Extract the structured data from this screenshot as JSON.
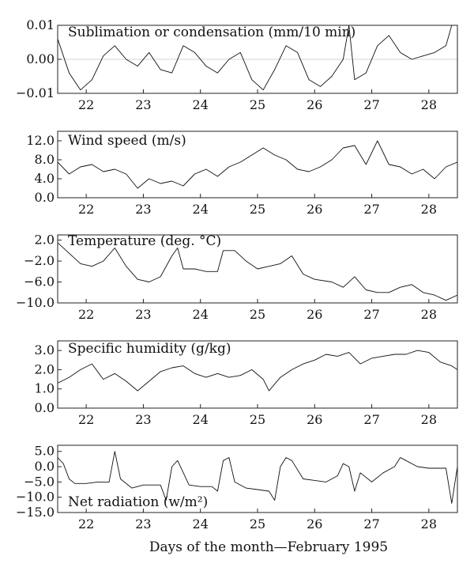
{
  "figure": {
    "xlabel": "Days of the month—February 1995"
  },
  "chart_data": [
    {
      "type": "line",
      "title": "Sublimation or condensation (mm/10 min)",
      "x": [
        21.5,
        21.7,
        21.9,
        22.1,
        22.3,
        22.5,
        22.7,
        22.9,
        23.1,
        23.3,
        23.5,
        23.7,
        23.9,
        24.1,
        24.3,
        24.5,
        24.7,
        24.9,
        25.1,
        25.3,
        25.5,
        25.7,
        25.9,
        26.1,
        26.3,
        26.5,
        26.6,
        26.7,
        26.9,
        27.1,
        27.3,
        27.5,
        27.7,
        27.9,
        28.1,
        28.3,
        28.4,
        28.5
      ],
      "y": [
        0.006,
        -0.004,
        -0.009,
        -0.006,
        0.001,
        0.004,
        0.0,
        -0.002,
        0.002,
        -0.003,
        -0.004,
        0.004,
        0.002,
        -0.002,
        -0.004,
        0.0,
        0.002,
        -0.006,
        -0.009,
        -0.003,
        0.004,
        0.002,
        -0.006,
        -0.008,
        -0.005,
        0.0,
        0.01,
        -0.006,
        -0.004,
        0.004,
        0.007,
        0.002,
        0.0,
        0.001,
        0.002,
        0.004,
        0.01,
        0.01
      ],
      "xlim": [
        21.5,
        28.5
      ],
      "ylim": [
        -0.01,
        0.01
      ],
      "yticks": [
        0.01,
        0.0,
        -0.01
      ],
      "ytick_labels": [
        "0.01",
        "0.00",
        "−0.01"
      ],
      "xticks": [
        22,
        23,
        24,
        25,
        26,
        27,
        28
      ],
      "xtick_labels": [
        "22",
        "23",
        "24",
        "25",
        "26",
        "27",
        "28"
      ],
      "zero_line": true
    },
    {
      "type": "line",
      "title": "Wind speed (m/s)",
      "x": [
        21.5,
        21.7,
        21.9,
        22.1,
        22.3,
        22.5,
        22.7,
        22.9,
        23.1,
        23.3,
        23.5,
        23.7,
        23.9,
        24.1,
        24.3,
        24.5,
        24.7,
        24.9,
        25.1,
        25.3,
        25.5,
        25.7,
        25.9,
        26.1,
        26.3,
        26.5,
        26.7,
        26.9,
        27.1,
        27.3,
        27.5,
        27.7,
        27.9,
        28.1,
        28.3,
        28.5
      ],
      "y": [
        7.5,
        5.0,
        6.5,
        7.0,
        5.5,
        6.0,
        5.0,
        2.0,
        4.0,
        3.0,
        3.5,
        2.5,
        5.0,
        6.0,
        4.5,
        6.5,
        7.5,
        9.0,
        10.5,
        9.0,
        8.0,
        6.0,
        5.5,
        6.5,
        8.0,
        10.5,
        11.0,
        7.0,
        12.0,
        7.0,
        6.5,
        5.0,
        6.0,
        4.0,
        6.5,
        7.5
      ],
      "xlim": [
        21.5,
        28.5
      ],
      "ylim": [
        0,
        14
      ],
      "yticks": [
        12,
        8,
        4,
        0
      ],
      "ytick_labels": [
        "12.0",
        "8.0",
        "4.0",
        "0.0"
      ],
      "xticks": [
        22,
        23,
        24,
        25,
        26,
        27,
        28
      ],
      "xtick_labels": [
        "22",
        "23",
        "24",
        "25",
        "26",
        "27",
        "28"
      ],
      "zero_line": false
    },
    {
      "type": "line",
      "title": "Temperature (deg. °C)",
      "x": [
        21.5,
        21.7,
        21.9,
        22.1,
        22.3,
        22.5,
        22.7,
        22.9,
        23.1,
        23.3,
        23.5,
        23.6,
        23.7,
        23.9,
        24.1,
        24.3,
        24.4,
        24.6,
        24.8,
        25.0,
        25.2,
        25.4,
        25.6,
        25.8,
        26.0,
        26.3,
        26.5,
        26.7,
        26.9,
        27.1,
        27.3,
        27.5,
        27.7,
        27.9,
        28.1,
        28.3,
        28.5
      ],
      "y": [
        1.5,
        -0.5,
        -2.5,
        -3.0,
        -2.0,
        0.5,
        -3.0,
        -5.5,
        -6.0,
        -5.0,
        -1.0,
        0.5,
        -3.5,
        -3.5,
        -4.0,
        -4.0,
        0.0,
        0.0,
        -2.0,
        -3.5,
        -3.0,
        -2.5,
        -1.0,
        -4.5,
        -5.5,
        -6.0,
        -7.0,
        -5.0,
        -7.5,
        -8.0,
        -8.0,
        -7.0,
        -6.5,
        -8.0,
        -8.5,
        -9.5,
        -8.5
      ],
      "xlim": [
        21.5,
        28.5
      ],
      "ylim": [
        -10,
        3
      ],
      "yticks": [
        2,
        -2,
        -6,
        -10
      ],
      "ytick_labels": [
        "2.0",
        "−2.0",
        "−6.0",
        "−10.0"
      ],
      "xticks": [
        22,
        23,
        24,
        25,
        26,
        27,
        28
      ],
      "xtick_labels": [
        "22",
        "23",
        "24",
        "25",
        "26",
        "27",
        "28"
      ],
      "zero_line": false
    },
    {
      "type": "line",
      "title": "Specific humidity (g/kg)",
      "x": [
        21.5,
        21.7,
        21.9,
        22.1,
        22.3,
        22.5,
        22.7,
        22.9,
        23.1,
        23.3,
        23.5,
        23.7,
        23.9,
        24.1,
        24.3,
        24.5,
        24.7,
        24.9,
        25.1,
        25.2,
        25.4,
        25.6,
        25.8,
        26.0,
        26.2,
        26.4,
        26.6,
        26.8,
        27.0,
        27.2,
        27.4,
        27.6,
        27.8,
        28.0,
        28.2,
        28.4,
        28.5
      ],
      "y": [
        1.3,
        1.6,
        2.0,
        2.3,
        1.5,
        1.8,
        1.4,
        0.9,
        1.4,
        1.9,
        2.1,
        2.2,
        1.8,
        1.6,
        1.8,
        1.6,
        1.7,
        2.0,
        1.5,
        0.9,
        1.6,
        2.0,
        2.3,
        2.5,
        2.8,
        2.7,
        2.9,
        2.3,
        2.6,
        2.7,
        2.8,
        2.8,
        3.0,
        2.9,
        2.4,
        2.2,
        2.0
      ],
      "xlim": [
        21.5,
        28.5
      ],
      "ylim": [
        0,
        3.5
      ],
      "yticks": [
        3,
        2,
        1,
        0
      ],
      "ytick_labels": [
        "3.0",
        "2.0",
        "1.0",
        "0.0"
      ],
      "xticks": [
        22,
        23,
        24,
        25,
        26,
        27,
        28
      ],
      "xtick_labels": [
        "22",
        "23",
        "24",
        "25",
        "26",
        "27",
        "28"
      ],
      "zero_line": false
    },
    {
      "type": "line",
      "title": "Net radiation (w/m²)",
      "x": [
        21.5,
        21.6,
        21.7,
        21.8,
        22.0,
        22.2,
        22.4,
        22.5,
        22.6,
        22.8,
        23.0,
        23.2,
        23.3,
        23.4,
        23.5,
        23.6,
        23.8,
        24.0,
        24.2,
        24.3,
        24.4,
        24.5,
        24.6,
        24.8,
        25.0,
        25.2,
        25.3,
        25.4,
        25.5,
        25.6,
        25.8,
        26.0,
        26.2,
        26.4,
        26.5,
        26.6,
        26.7,
        26.8,
        27.0,
        27.2,
        27.4,
        27.5,
        27.6,
        27.8,
        28.0,
        28.2,
        28.3,
        28.4,
        28.5
      ],
      "y": [
        3.0,
        1.0,
        -4.0,
        -5.5,
        -5.5,
        -5.0,
        -5.0,
        5.0,
        -4.0,
        -7.0,
        -6.0,
        -6.0,
        -6.0,
        -11.0,
        0.0,
        2.0,
        -6.0,
        -6.5,
        -6.5,
        -8.0,
        2.0,
        3.0,
        -5.0,
        -7.0,
        -7.5,
        -8.0,
        -11.0,
        0.0,
        3.0,
        2.0,
        -4.0,
        -4.5,
        -5.0,
        -3.0,
        1.0,
        0.0,
        -8.0,
        -2.0,
        -5.0,
        -2.0,
        0.0,
        3.0,
        2.0,
        0.0,
        -0.5,
        -0.5,
        -0.5,
        -12.0,
        0.0
      ],
      "xlim": [
        21.5,
        28.5
      ],
      "ylim": [
        -15,
        7
      ],
      "yticks": [
        5,
        0,
        -5,
        -10,
        -15
      ],
      "ytick_labels": [
        "5.0",
        "0.0",
        "−5.0",
        "−10.0",
        "−15.0"
      ],
      "xticks": [
        22,
        23,
        24,
        25,
        26,
        27,
        28
      ],
      "xtick_labels": [
        "22",
        "23",
        "24",
        "25",
        "26",
        "27",
        "28"
      ],
      "zero_line": false
    }
  ]
}
